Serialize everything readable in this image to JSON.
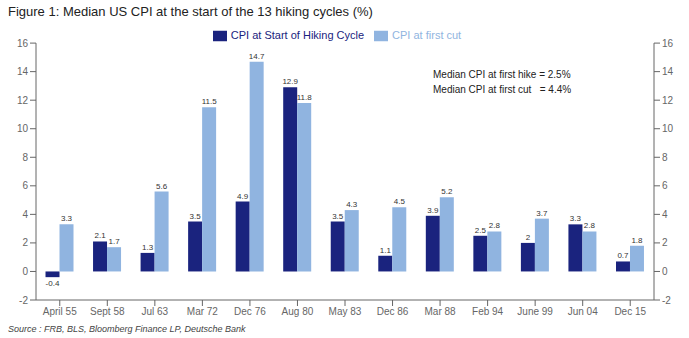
{
  "chart_data": {
    "type": "bar",
    "title": "Figure 1: Median US CPI at the start of the 13 hiking cycles (%)",
    "categories": [
      "April 55",
      "Sept 58",
      "Jul 63",
      "Mar 72",
      "Dec 76",
      "Aug 80",
      "May 83",
      "Dec 86",
      "Mar 88",
      "Feb 94",
      "June 99",
      "Jun 04",
      "Dec 15"
    ],
    "series": [
      {
        "name": "CPI at Start of Hiking Cycle",
        "color": "#1a237e",
        "values": [
          -0.4,
          2.1,
          1.3,
          3.5,
          4.9,
          12.9,
          3.5,
          1.1,
          3.9,
          2.5,
          2.0,
          3.3,
          0.7
        ]
      },
      {
        "name": "CPI at first cut",
        "color": "#90b4e0",
        "values": [
          3.3,
          1.7,
          5.6,
          11.5,
          14.7,
          11.8,
          4.3,
          4.5,
          5.2,
          2.8,
          3.7,
          2.8,
          1.8
        ]
      }
    ],
    "ylim": [
      -2,
      16
    ],
    "yticks": [
      -2,
      0,
      2,
      4,
      6,
      8,
      10,
      12,
      14,
      16
    ],
    "y2lim": [
      -2,
      16
    ],
    "y2ticks": [
      -2,
      0,
      2,
      4,
      6,
      8,
      10,
      12,
      14,
      16
    ],
    "data_labels": true,
    "legend": "top",
    "grid": false,
    "annotation": "Median CPI at first hike = 2.5%\nMedian CPI at first cut   = 4.4%",
    "source": "Source : FRB, BLS, Bloomberg Finance LP, Deutsche Bank"
  }
}
